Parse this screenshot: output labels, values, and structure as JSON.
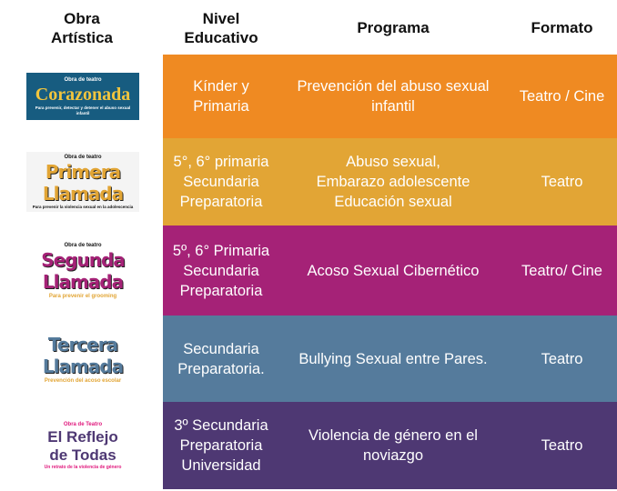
{
  "headers": {
    "obra": "Obra\nArtística",
    "nivel": "Nivel\nEducativo",
    "programa": "Programa",
    "formato": "Formato"
  },
  "rows": [
    {
      "logo": {
        "top": "Obra de teatro",
        "title": "Corazonada",
        "sub": "Para prevenir, detectar y detener el abuso sexual infantil"
      },
      "nivel": "Kínder y\nPrimaria",
      "programa": "Prevención del abuso sexual\ninfantil",
      "formato": "Teatro / Cine",
      "color": "#EF8A22"
    },
    {
      "logo": {
        "top": "Obra de teatro",
        "title": "Primera\nLlamada",
        "sub": "Para prevenir la violencia sexual en la adolescencia"
      },
      "nivel": "5°, 6° primaria\nSecundaria\nPreparatoria",
      "programa": "Abuso sexual,\nEmbarazo adolescente\nEducación sexual",
      "formato": "Teatro",
      "color": "#E2A535"
    },
    {
      "logo": {
        "top": "Obra de teatro",
        "title": "Segunda\nLlamada",
        "sub": "Para prevenir el grooming"
      },
      "nivel": "5º, 6° Primaria\nSecundaria\nPreparatoria",
      "programa": "Acoso Sexual Cibernético",
      "formato": "Teatro/ Cine",
      "color": "#A52277"
    },
    {
      "logo": {
        "top": "",
        "title": "Tercera\nLlamada",
        "sub": "Prevención del acoso escolar"
      },
      "nivel": "Secundaria\nPreparatoria.",
      "programa": "Bullying Sexual entre Pares.",
      "formato": "Teatro",
      "color": "#557B9C"
    },
    {
      "logo": {
        "top": "Obra de Teatro",
        "title": "El Reflejo\nde Todas",
        "sub": "Un retrato de la violencia de género"
      },
      "nivel": "3º Secundaria\nPreparatoria\nUniversidad",
      "programa": "Violencia de género en el\nnoviazgo",
      "formato": "Teatro",
      "color": "#4E3873"
    }
  ]
}
